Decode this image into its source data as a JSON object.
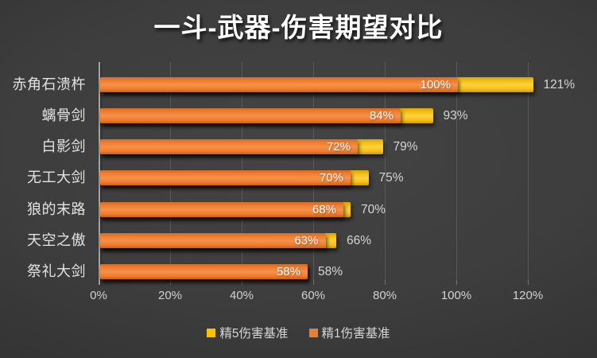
{
  "title": "一斗-武器-伤害期望对比",
  "colors": {
    "background_center": "#424242",
    "background_edge": "#242424",
    "series_r5_gold": "#FFC000",
    "series_r1_orange": "#ED7D31",
    "axis_line": "#A6A6A6",
    "label_inside": "#FFFFFF",
    "label_outside": "#D6D6D6"
  },
  "chart_data": {
    "type": "bar",
    "orientation": "horizontal",
    "title": "一斗-武器-伤害期望对比",
    "categories": [
      "赤角石溃杵",
      "螭骨剑",
      "白影剑",
      "无工大剑",
      "狼的末路",
      "天空之傲",
      "祭礼大剑"
    ],
    "series": [
      {
        "name": "精5伤害基准",
        "color": "#FFC000",
        "values": [
          121,
          93,
          79,
          75,
          70,
          66,
          58
        ],
        "labels": [
          "121%",
          "93%",
          "79%",
          "75%",
          "70%",
          "66%",
          "58%"
        ],
        "label_position": "outside"
      },
      {
        "name": "精1伤害基准",
        "color": "#ED7D31",
        "values": [
          100,
          84,
          72,
          70,
          68,
          63,
          58
        ],
        "labels": [
          "100%",
          "84%",
          "72%",
          "70%",
          "68%",
          "63%",
          "58%"
        ],
        "label_position": "inside"
      }
    ],
    "x_ticks": [
      "0%",
      "20%",
      "40%",
      "60%",
      "80%",
      "100%",
      "120%"
    ],
    "xlim": [
      0,
      120
    ],
    "grid": true,
    "legend_position": "bottom"
  }
}
